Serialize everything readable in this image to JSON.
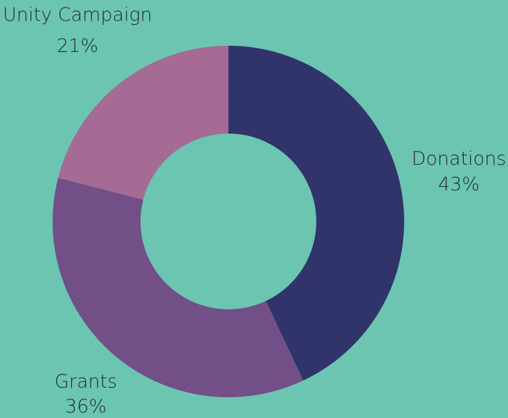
{
  "chart_data": {
    "type": "pie",
    "variant": "donut",
    "title": "",
    "slices": [
      {
        "label": "Donations",
        "value": 43,
        "value_text": "43%",
        "color": "#30346b"
      },
      {
        "label": "Grants",
        "value": 36,
        "value_text": "36%",
        "color": "#724f87"
      },
      {
        "label": "Unity Campaign",
        "value": 21,
        "value_text": "21%",
        "color": "#a56b95"
      }
    ],
    "start_angle_deg": 0,
    "direction": "clockwise",
    "legend": "none",
    "colors": {
      "background": "#6cc5b0",
      "label_text": "#1f2a33"
    }
  }
}
